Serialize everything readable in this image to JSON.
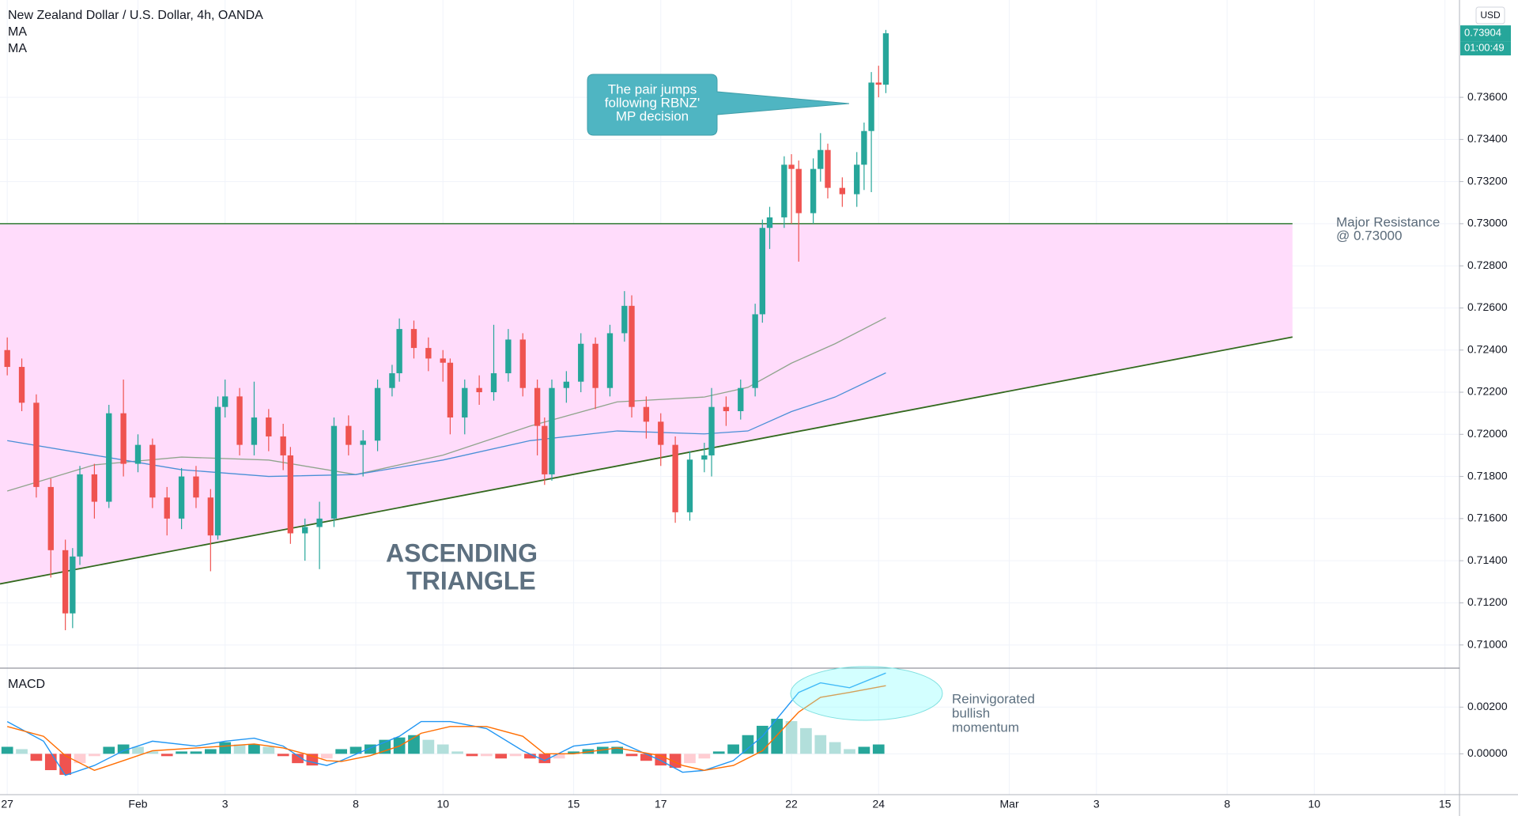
{
  "currency": "USD",
  "countdown": "01:00:49",
  "chart_data": [
    {
      "type": "candlestick",
      "title": "New Zealand Dollar / U.S. Dollar, 4h, OANDA",
      "up_color": "#26a69a",
      "down_color": "#ef5350",
      "xlim": [
        -1,
        200
      ],
      "xticks": [
        {
          "value": 0,
          "label": "27"
        },
        {
          "value": 18,
          "label": "Feb"
        },
        {
          "value": 30,
          "label": "3"
        },
        {
          "value": 48,
          "label": "8"
        },
        {
          "value": 60,
          "label": "10"
        },
        {
          "value": 78,
          "label": "15"
        },
        {
          "value": 90,
          "label": "17"
        },
        {
          "value": 108,
          "label": "22"
        },
        {
          "value": 120,
          "label": "24"
        },
        {
          "value": 138,
          "label": "Mar"
        },
        {
          "value": 150,
          "label": "3"
        },
        {
          "value": 168,
          "label": "8"
        },
        {
          "value": 180,
          "label": "10"
        },
        {
          "value": 198,
          "label": "15"
        }
      ],
      "ylim": [
        0.7089,
        0.74062
      ],
      "yticks": [
        {
          "value": 0.71,
          "label": "0.71000"
        },
        {
          "value": 0.712,
          "label": "0.71200"
        },
        {
          "value": 0.714,
          "label": "0.71400"
        },
        {
          "value": 0.716,
          "label": "0.71600"
        },
        {
          "value": 0.718,
          "label": "0.71800"
        },
        {
          "value": 0.72,
          "label": "0.72000"
        },
        {
          "value": 0.722,
          "label": "0.72200"
        },
        {
          "value": 0.724,
          "label": "0.72400"
        },
        {
          "value": 0.726,
          "label": "0.72600"
        },
        {
          "value": 0.728,
          "label": "0.72800"
        },
        {
          "value": 0.73,
          "label": "0.73000"
        },
        {
          "value": 0.732,
          "label": "0.73200"
        },
        {
          "value": 0.734,
          "label": "0.73400"
        },
        {
          "value": 0.736,
          "label": "0.73600"
        }
      ],
      "grid": true,
      "current_price": {
        "value": 0.73904,
        "label": "0.73904"
      },
      "x": [
        0,
        2,
        4,
        6,
        8,
        9,
        10,
        12,
        14,
        16,
        18,
        20,
        22,
        24,
        26,
        28,
        29,
        30,
        32,
        34,
        36,
        38,
        39,
        41,
        43,
        45,
        47,
        49,
        51,
        53,
        54,
        56,
        58,
        60,
        61,
        63,
        65,
        67,
        69,
        71,
        73,
        74,
        75,
        77,
        79,
        81,
        83,
        85,
        86,
        88,
        90,
        92,
        94,
        96,
        97,
        99,
        101,
        103,
        104,
        105,
        107,
        108,
        109,
        111,
        112,
        113,
        115,
        117,
        118,
        119,
        120,
        121
      ],
      "open": [
        0.724,
        0.7232,
        0.7215,
        0.7175,
        0.7145,
        0.7115,
        0.7142,
        0.7181,
        0.7168,
        0.721,
        0.7186,
        0.7195,
        0.717,
        0.716,
        0.718,
        0.717,
        0.7152,
        0.7213,
        0.7218,
        0.7195,
        0.7208,
        0.7199,
        0.719,
        0.7153,
        0.7156,
        0.716,
        0.7204,
        0.7195,
        0.7197,
        0.7222,
        0.7229,
        0.725,
        0.7241,
        0.7236,
        0.7234,
        0.7208,
        0.7222,
        0.722,
        0.7229,
        0.7245,
        0.7222,
        0.7204,
        0.7181,
        0.7222,
        0.7225,
        0.7243,
        0.7222,
        0.7248,
        0.7261,
        0.7213,
        0.7206,
        0.7195,
        0.7163,
        0.7188,
        0.719,
        0.7213,
        0.7211,
        0.7222,
        0.7257,
        0.7298,
        0.7303,
        0.7328,
        0.7326,
        0.7305,
        0.7326,
        0.7335,
        0.7317,
        0.7314,
        0.7328,
        0.7344,
        0.7367,
        0.7366
      ],
      "high": [
        0.7246,
        0.7236,
        0.7219,
        0.7179,
        0.715,
        0.7146,
        0.7185,
        0.7186,
        0.7214,
        0.7226,
        0.72,
        0.7198,
        0.7175,
        0.7184,
        0.7185,
        0.7174,
        0.7218,
        0.7226,
        0.7222,
        0.7225,
        0.7212,
        0.7205,
        0.7194,
        0.716,
        0.7168,
        0.7208,
        0.7209,
        0.7202,
        0.7226,
        0.7233,
        0.7255,
        0.7254,
        0.7246,
        0.724,
        0.7236,
        0.7226,
        0.7228,
        0.7252,
        0.725,
        0.7248,
        0.7226,
        0.7208,
        0.7226,
        0.723,
        0.7248,
        0.7246,
        0.7252,
        0.7268,
        0.7266,
        0.7218,
        0.721,
        0.7199,
        0.7192,
        0.7196,
        0.7222,
        0.7218,
        0.7226,
        0.7262,
        0.7302,
        0.7308,
        0.7332,
        0.7333,
        0.733,
        0.7331,
        0.7343,
        0.7338,
        0.7322,
        0.7334,
        0.7348,
        0.7372,
        0.7375,
        0.7392
      ],
      "low": [
        0.7228,
        0.7211,
        0.717,
        0.7132,
        0.7107,
        0.7108,
        0.7138,
        0.716,
        0.7165,
        0.718,
        0.7182,
        0.7165,
        0.7152,
        0.7155,
        0.7165,
        0.7135,
        0.715,
        0.7208,
        0.719,
        0.719,
        0.7192,
        0.7183,
        0.7148,
        0.714,
        0.7136,
        0.7156,
        0.719,
        0.718,
        0.7192,
        0.7218,
        0.7225,
        0.7236,
        0.723,
        0.7225,
        0.72,
        0.72,
        0.7214,
        0.7216,
        0.7225,
        0.7218,
        0.719,
        0.7176,
        0.7178,
        0.7215,
        0.722,
        0.7212,
        0.7218,
        0.7244,
        0.7208,
        0.7198,
        0.7185,
        0.7158,
        0.7159,
        0.7182,
        0.718,
        0.7204,
        0.7207,
        0.7218,
        0.7253,
        0.7288,
        0.7298,
        0.73,
        0.7282,
        0.73,
        0.732,
        0.7312,
        0.7308,
        0.7308,
        0.7316,
        0.7315,
        0.736,
        0.7362
      ],
      "close": [
        0.7232,
        0.7215,
        0.7175,
        0.7145,
        0.7115,
        0.7142,
        0.7181,
        0.7168,
        0.721,
        0.7186,
        0.7195,
        0.717,
        0.716,
        0.718,
        0.717,
        0.7152,
        0.7213,
        0.7218,
        0.7195,
        0.7208,
        0.7199,
        0.719,
        0.7153,
        0.7156,
        0.716,
        0.7204,
        0.7195,
        0.7197,
        0.7222,
        0.7229,
        0.725,
        0.7241,
        0.7236,
        0.7234,
        0.7208,
        0.7222,
        0.722,
        0.7229,
        0.7245,
        0.7222,
        0.7204,
        0.7181,
        0.7222,
        0.7225,
        0.7243,
        0.7222,
        0.7248,
        0.7261,
        0.7213,
        0.7206,
        0.7195,
        0.7163,
        0.7188,
        0.719,
        0.7213,
        0.7211,
        0.7222,
        0.7257,
        0.7298,
        0.7303,
        0.7328,
        0.7326,
        0.7305,
        0.7326,
        0.7335,
        0.7317,
        0.7314,
        0.7328,
        0.7344,
        0.7367,
        0.7366,
        0.73904
      ],
      "series": [
        {
          "name": "MA",
          "color": "#8fa48c",
          "x": [
            0,
            12,
            24,
            36,
            48,
            60,
            72,
            84,
            96,
            102,
            108,
            114,
            121
          ],
          "values": [
            0.71731,
            0.71855,
            0.71892,
            0.71878,
            0.71809,
            0.71901,
            0.72039,
            0.72154,
            0.72177,
            0.72223,
            0.72338,
            0.7243,
            0.72554
          ]
        },
        {
          "name": "MA",
          "color": "#4a8fd6",
          "x": [
            0,
            12,
            24,
            36,
            48,
            60,
            72,
            84,
            96,
            102,
            108,
            114,
            121
          ],
          "values": [
            0.7197,
            0.71901,
            0.71832,
            0.718,
            0.71809,
            0.71878,
            0.7197,
            0.72016,
            0.72002,
            0.72016,
            0.72108,
            0.72177,
            0.72292
          ]
        }
      ],
      "resistance": {
        "x": [
          -1,
          177
        ],
        "y": 0.73,
        "color": "#2e7d32",
        "label": [
          "Major Resistance",
          "@ 0.73000"
        ]
      },
      "trendline": {
        "x": [
          -1,
          177
        ],
        "y": [
          0.7129,
          0.72462
        ],
        "color": "#33691e"
      },
      "triangle_fill": "#ffdcfb",
      "pattern_label": [
        "ASCENDING",
        "TRIANGLE"
      ],
      "callout": [
        "The pair jumps",
        "following RBNZ'",
        "MP decision"
      ]
    },
    {
      "type": "macd",
      "title": "MACD",
      "ylim": [
        -0.00175,
        0.00367
      ],
      "yticks": [
        {
          "value": 0,
          "label": "0.00000"
        },
        {
          "value": 0.002,
          "label": "0.00200"
        }
      ],
      "histogram": {
        "x": [
          0,
          2,
          4,
          6,
          8,
          10,
          12,
          14,
          16,
          18,
          20,
          22,
          24,
          26,
          28,
          30,
          32,
          34,
          36,
          38,
          40,
          42,
          44,
          46,
          48,
          50,
          52,
          54,
          56,
          58,
          60,
          62,
          64,
          66,
          68,
          70,
          72,
          74,
          76,
          78,
          80,
          82,
          84,
          86,
          88,
          90,
          92,
          94,
          96,
          98,
          100,
          102,
          104,
          106,
          108,
          110,
          112,
          114,
          116,
          118,
          120
        ],
        "values": [
          0.0003,
          0.0002,
          -0.0003,
          -0.0007,
          -0.0009,
          -0.0004,
          -0.0001,
          0.0003,
          0.0004,
          0.0003,
          0.0001,
          -0.0001,
          0.0001,
          0.0001,
          0.0002,
          0.0005,
          0.0004,
          0.0004,
          0.0003,
          -0.0001,
          -0.0004,
          -0.0005,
          -0.0002,
          0.0002,
          0.0003,
          0.0004,
          0.0006,
          0.0007,
          0.0008,
          0.0006,
          0.0004,
          0.0001,
          -0.0001,
          -0.0001,
          -0.0002,
          -0.0001,
          -0.0002,
          -0.0004,
          -0.0002,
          0.0001,
          0.0002,
          0.0003,
          0.0003,
          -0.0001,
          -0.0003,
          -0.0005,
          -0.0006,
          -0.0004,
          -0.0002,
          0.0001,
          0.0004,
          0.0008,
          0.0012,
          0.0015,
          0.0014,
          0.0011,
          0.0008,
          0.0005,
          0.0002,
          0.0003,
          0.0004
        ],
        "colors": {
          "rising_above": "#26a69a",
          "falling_above": "#b2dfdb",
          "rising_below": "#ffcdd2",
          "falling_below": "#ef5350"
        }
      },
      "series": [
        {
          "name": "MACD",
          "color": "#2196f3",
          "x": [
            0,
            5,
            8,
            12,
            16,
            20,
            26,
            30,
            34,
            38,
            41,
            44,
            46,
            50,
            54,
            57,
            61,
            66,
            71,
            74,
            78,
            84,
            90,
            93,
            96,
            100,
            104,
            109,
            112,
            116,
            121
          ],
          "values": [
            0.00138,
            0.00054,
            -0.00092,
            -0.0005,
            0.00013,
            0.00054,
            0.00033,
            0.00054,
            0.00067,
            0.00033,
            -0.00029,
            -0.0005,
            -0.00029,
            0.00025,
            0.00075,
            0.00138,
            0.00138,
            0.00108,
            0.00013,
            -0.00029,
            0.00033,
            0.00054,
            -0.00029,
            -0.00079,
            -0.00071,
            -0.00029,
            0.00075,
            0.00263,
            0.00304,
            0.00283,
            0.00346
          ]
        },
        {
          "name": "Signal",
          "color": "#ff6d00",
          "x": [
            0,
            5,
            8,
            12,
            16,
            20,
            26,
            30,
            34,
            38,
            41,
            44,
            46,
            50,
            54,
            57,
            61,
            66,
            71,
            74,
            78,
            84,
            90,
            93,
            96,
            100,
            104,
            109,
            112,
            116,
            121
          ],
          "values": [
            0.00117,
            0.00075,
            -8e-05,
            -0.00071,
            -0.00029,
            0.00013,
            0.00025,
            0.00033,
            0.00042,
            0.00025,
            0,
            -0.00029,
            -0.00033,
            -8e-05,
            0.00033,
            0.00088,
            0.00117,
            0.00117,
            0.00075,
            0,
            0,
            0.00025,
            -8e-05,
            -0.0005,
            -0.00071,
            -0.0005,
            0.00013,
            0.00179,
            0.00242,
            0.00263,
            0.00292
          ]
        }
      ],
      "note": [
        "Reinvigorated",
        "bullish",
        "momentum"
      ]
    }
  ]
}
